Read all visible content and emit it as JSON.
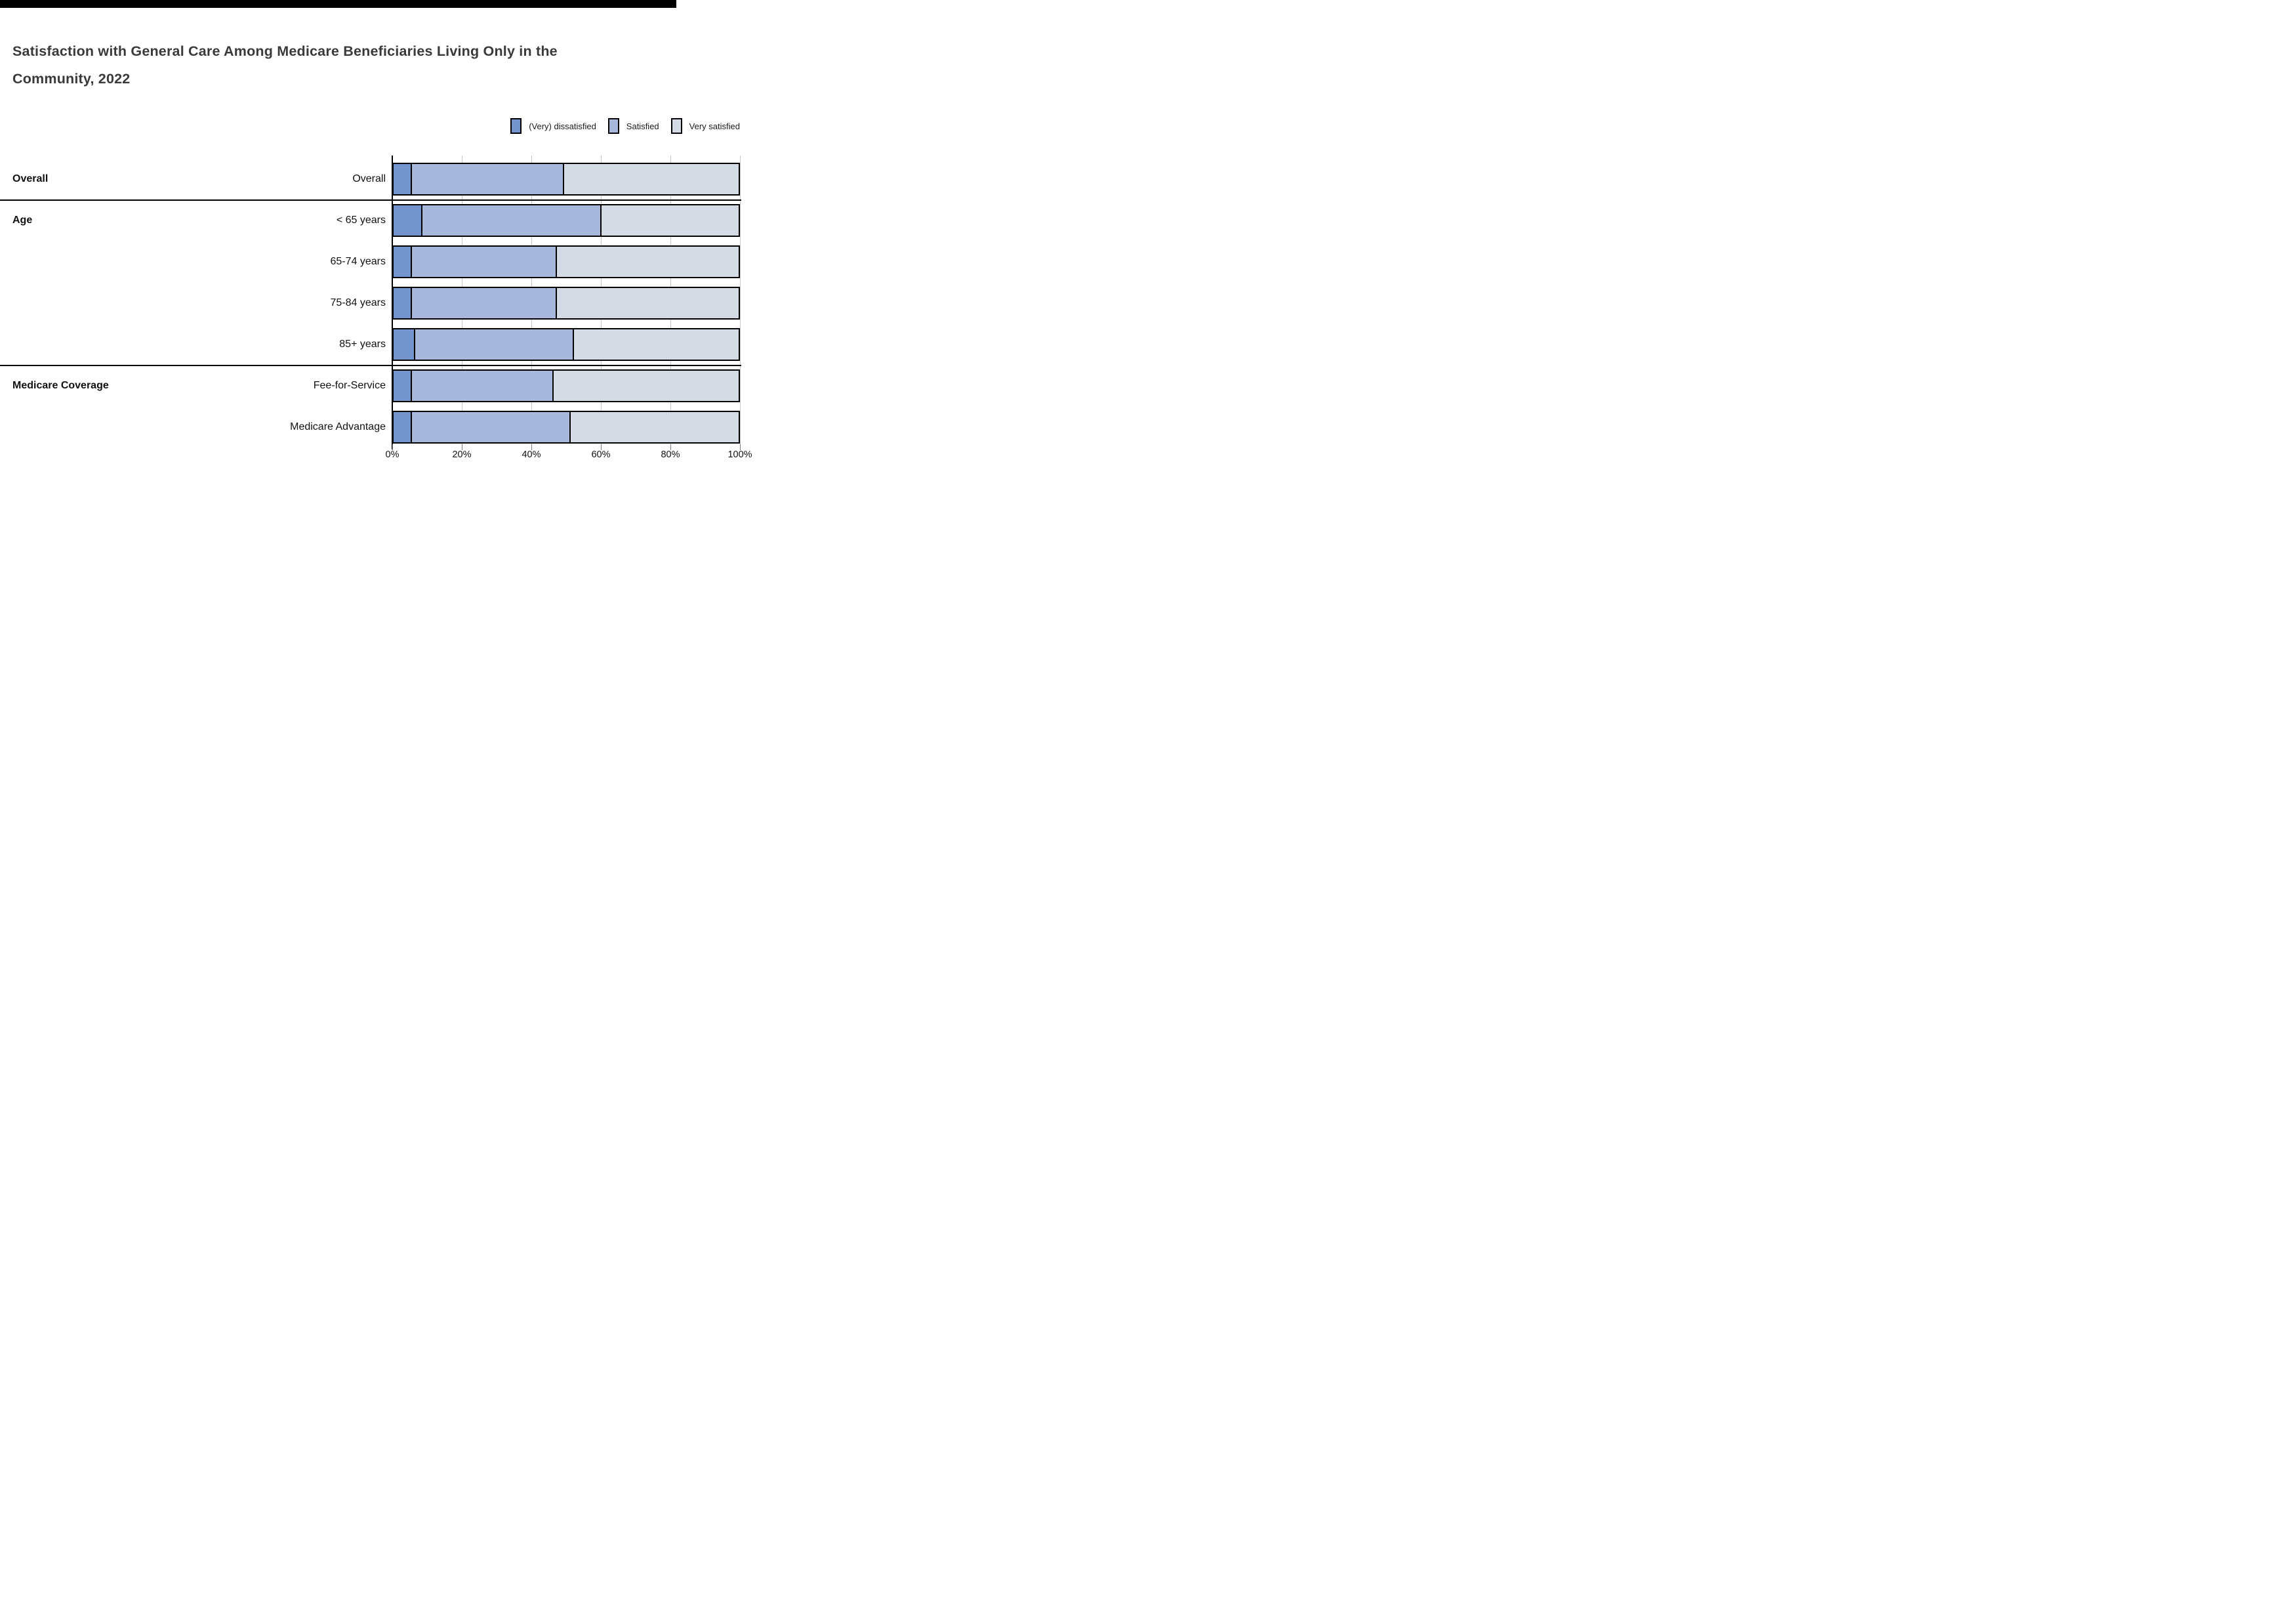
{
  "title": {
    "line1": "Satisfaction with General Care Among Medicare Beneficiaries Living Only in the",
    "line2": "Community, 2022"
  },
  "colors": {
    "dissatisfied": "#7494ce",
    "satisfied": "#a7b8dc",
    "very_satisfied": "#d5dbe5",
    "bar_border": "#000000",
    "gridline": "#c6c6c6",
    "separator": "#000000",
    "title_text": "#3a3a3a",
    "top_bar": "#000000"
  },
  "legend": [
    {
      "label": "(Very) dissatisfied",
      "color_key": "dissatisfied"
    },
    {
      "label": "Satisfied",
      "color_key": "satisfied"
    },
    {
      "label": "Very satisfied",
      "color_key": "very_satisfied"
    }
  ],
  "chart_data": {
    "type": "bar",
    "stacked": true,
    "orientation": "horizontal",
    "title": "Satisfaction with General Care Among Medicare Beneficiaries Living Only in the Community, 2022",
    "series_names": [
      "(Very) dissatisfied",
      "Satisfied",
      "Very satisfied"
    ],
    "series_keys": [
      "dissatisfied",
      "satisfied",
      "very_satisfied"
    ],
    "x_axis": {
      "ticks": [
        "0%",
        "20%",
        "40%",
        "60%",
        "80%",
        "100%"
      ],
      "tick_values": [
        0,
        20,
        40,
        60,
        80,
        100
      ],
      "range": [
        0,
        100
      ],
      "unit": "%"
    },
    "legend_position": "top-right",
    "grid": true,
    "sections": [
      {
        "label": "Overall",
        "rows": [
          {
            "label": "Overall",
            "values": {
              "dissatisfied": 5,
              "satisfied": 44,
              "very_satisfied": 51
            }
          }
        ]
      },
      {
        "label": "Age",
        "rows": [
          {
            "label": "< 65 years",
            "values": {
              "dissatisfied": 8,
              "satisfied": 52,
              "very_satisfied": 40
            }
          },
          {
            "label": "65-74 years",
            "values": {
              "dissatisfied": 5,
              "satisfied": 42,
              "very_satisfied": 53
            }
          },
          {
            "label": "75-84 years",
            "values": {
              "dissatisfied": 5,
              "satisfied": 42,
              "very_satisfied": 53
            }
          },
          {
            "label": "85+ years",
            "values": {
              "dissatisfied": 6,
              "satisfied": 46,
              "very_satisfied": 48
            }
          }
        ]
      },
      {
        "label": "Medicare Coverage",
        "rows": [
          {
            "label": "Fee-for-Service",
            "values": {
              "dissatisfied": 5,
              "satisfied": 41,
              "very_satisfied": 54
            }
          },
          {
            "label": "Medicare Advantage",
            "values": {
              "dissatisfied": 5,
              "satisfied": 46,
              "very_satisfied": 49
            }
          }
        ]
      }
    ]
  }
}
